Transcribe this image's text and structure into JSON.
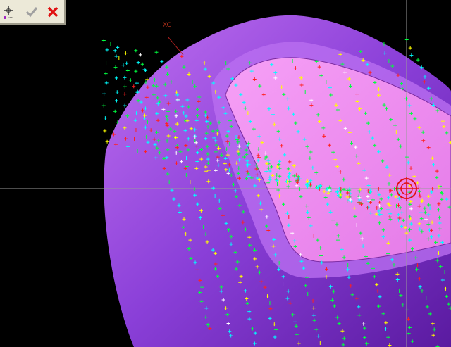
{
  "toolbar": {
    "buttons": [
      {
        "name": "point-dialog",
        "icon": "point-constructor-icon",
        "enabled": true
      },
      {
        "name": "ok",
        "icon": "checkmark-icon",
        "enabled": false
      },
      {
        "name": "cancel",
        "icon": "close-icon",
        "enabled": true
      }
    ]
  },
  "viewport": {
    "axis_label": "XC",
    "background": "#000000",
    "body_color": "#9a4be0",
    "face_color": "#f08cf0",
    "crosshair_color": "#9a9a9a",
    "target_color": "#e01010",
    "point_colors": [
      "#00ff40",
      "#00ffff",
      "#ffff00",
      "#ff2020",
      "#ffffff"
    ]
  }
}
